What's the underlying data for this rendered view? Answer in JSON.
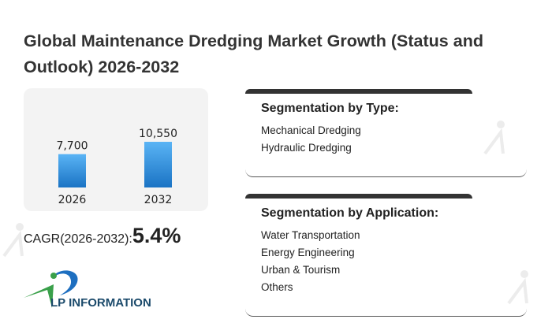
{
  "title": "Global Maintenance Dredging Market Growth (Status and Outlook) 2026-2032",
  "chart_data": {
    "type": "bar",
    "categories": [
      "2026",
      "2032"
    ],
    "values": [
      7700,
      10550
    ],
    "data_labels": [
      "7,700",
      "10,550"
    ],
    "colors": {
      "bar_top": "#5ab4f5",
      "bar_bottom": "#1a73c4"
    }
  },
  "cagr": {
    "label": "CAGR(2026-2032):",
    "value": "5.4%"
  },
  "logo": {
    "text": "LP INFORMATION"
  },
  "segments": [
    {
      "title": "Segmentation by Type:",
      "items": [
        "Mechanical Dredging",
        "Hydraulic Dredging"
      ]
    },
    {
      "title": "Segmentation by Application:",
      "items": [
        "Water Transportation",
        "Energy Engineering",
        "Urban & Tourism",
        "Others"
      ]
    }
  ]
}
